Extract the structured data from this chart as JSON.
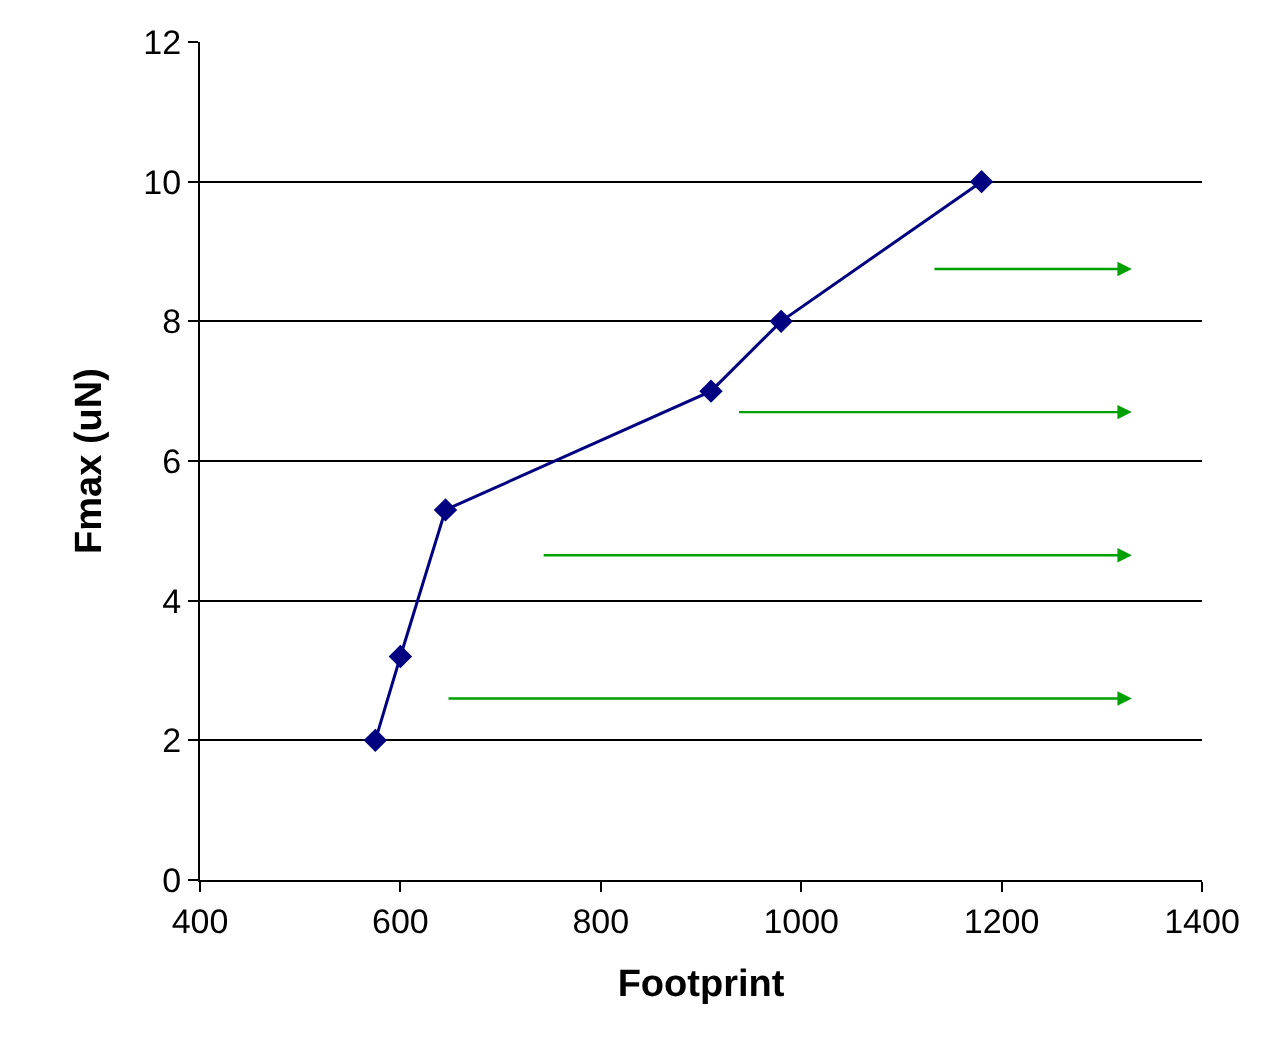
{
  "chart_data": {
    "type": "line",
    "xlabel": "Footprint",
    "ylabel": "Fmax (uN)",
    "xlim": [
      400,
      1400
    ],
    "xticks": [
      400,
      600,
      800,
      1000,
      1200,
      1400
    ],
    "ylim": [
      0,
      12
    ],
    "yticks": [
      0,
      2,
      4,
      6,
      8,
      10,
      12
    ],
    "grid": "y",
    "marker": "diamond",
    "line_style": "solid",
    "series": [
      {
        "color": "#000080",
        "x": [
          575,
          600,
          645,
          910,
          980,
          1180
        ],
        "values": [
          2,
          3.2,
          5.3,
          7,
          8,
          10
        ]
      }
    ]
  }
}
